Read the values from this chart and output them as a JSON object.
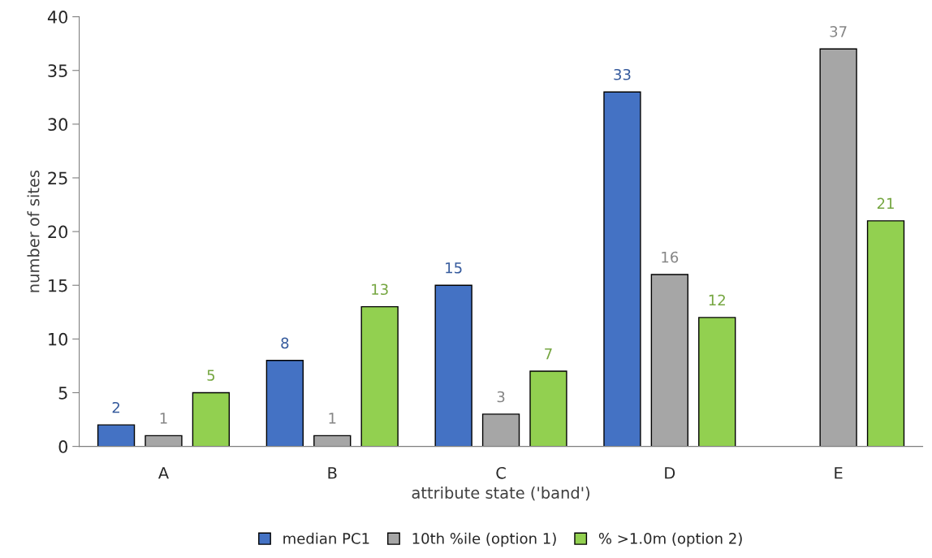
{
  "chart_data": {
    "type": "bar",
    "categories": [
      "A",
      "B",
      "C",
      "D",
      "E"
    ],
    "xlabel": "attribute state ('band')",
    "ylabel": "number of sites",
    "series": [
      {
        "name": "median PC1",
        "color": "#4472c4",
        "values": [
          2,
          8,
          15,
          33,
          null
        ]
      },
      {
        "name": "10th %ile (option 1)",
        "color": "#a6a6a6",
        "values": [
          1,
          1,
          3,
          16,
          37
        ]
      },
      {
        "name": "% >1.0m (option 2)",
        "color": "#92d050",
        "values": [
          5,
          13,
          7,
          12,
          21
        ]
      }
    ],
    "ylim": [
      0,
      40
    ],
    "yticks": [
      0,
      5,
      10,
      15,
      20,
      25,
      30,
      35,
      40
    ],
    "data_labels": true,
    "grid": false,
    "legend": "bottom"
  }
}
